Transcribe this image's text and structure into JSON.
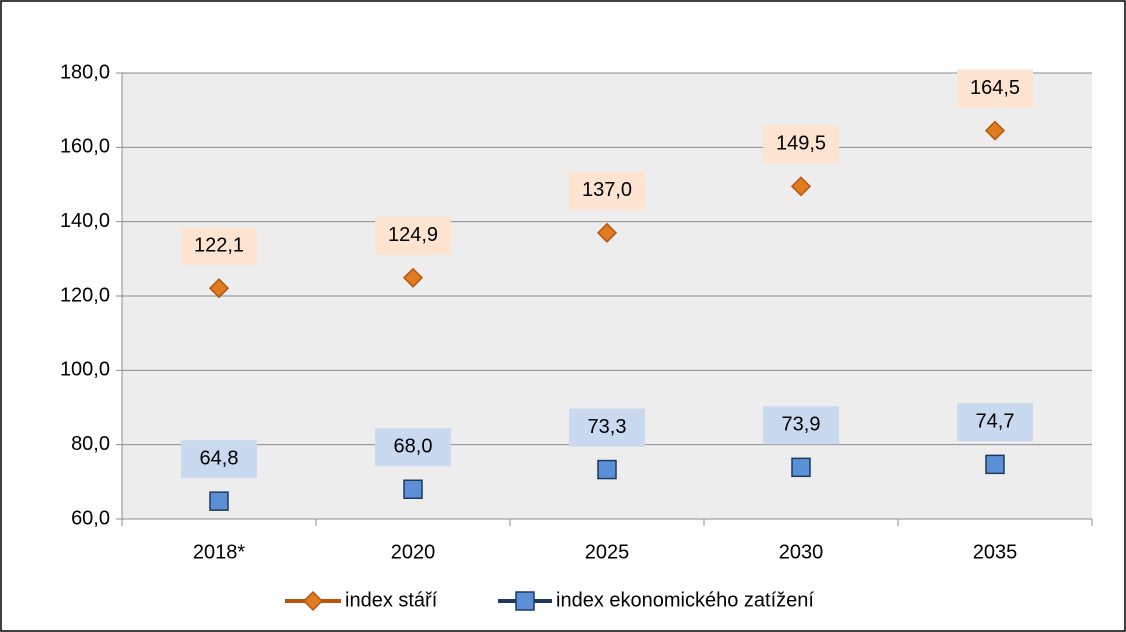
{
  "chart_data": {
    "type": "line",
    "categories": [
      "2018*",
      "2020",
      "2025",
      "2030",
      "2035"
    ],
    "series": [
      {
        "name": "index stáří",
        "color": "#b8560f",
        "marker_color": "#e07b1f",
        "marker": "diamond",
        "label_bg": "#fde4d0",
        "values": [
          122.1,
          124.9,
          137.0,
          149.5,
          164.5
        ],
        "value_labels": [
          "122,1",
          "124,9",
          "137,0",
          "149,5",
          "164,5"
        ]
      },
      {
        "name": "index ekonomického zatížení",
        "color": "#1f3a5f",
        "marker_color": "#5b8fd6",
        "marker": "square",
        "label_bg": "#c9daf0",
        "values": [
          64.8,
          68.0,
          73.3,
          73.9,
          74.7
        ],
        "value_labels": [
          "64,8",
          "68,0",
          "73,3",
          "73,9",
          "74,7"
        ]
      }
    ],
    "ylim": [
      60,
      180
    ],
    "yticks": [
      {
        "value": 60,
        "label": "60,0"
      },
      {
        "value": 80,
        "label": "80,0"
      },
      {
        "value": 100,
        "label": "100,0"
      },
      {
        "value": 120,
        "label": "120,0"
      },
      {
        "value": 140,
        "label": "140,0"
      },
      {
        "value": 160,
        "label": "160,0"
      },
      {
        "value": 180,
        "label": "180,0"
      }
    ],
    "grid": true,
    "legend": "bottom"
  }
}
